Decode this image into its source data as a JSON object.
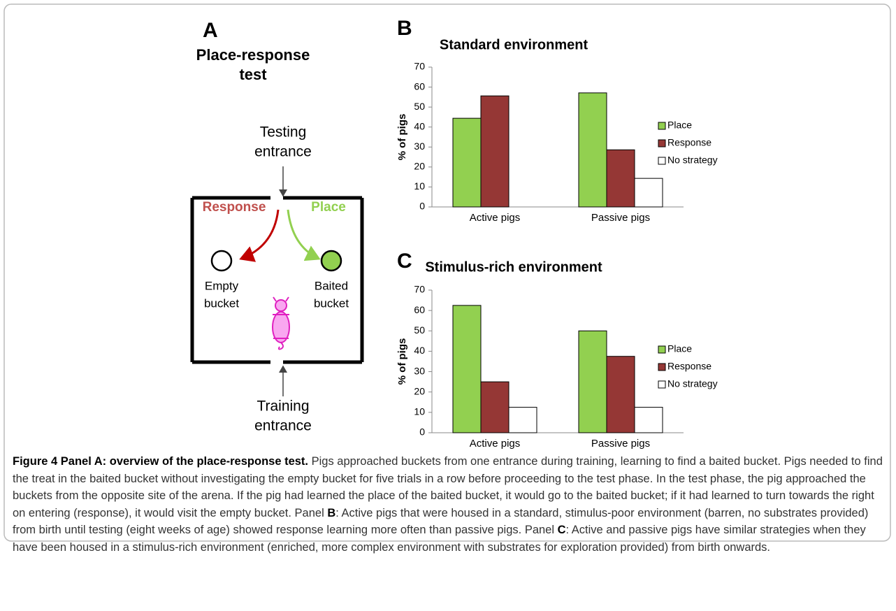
{
  "diagram": {
    "panel": "A",
    "title_lines": [
      "Place-response",
      "test"
    ],
    "testing_lines": [
      "Testing",
      "entrance"
    ],
    "training_lines": [
      "Training",
      "entrance"
    ],
    "response": "Response",
    "place": "Place",
    "empty_lines": [
      "Empty",
      "bucket"
    ],
    "baited_lines": [
      "Baited",
      "bucket"
    ]
  },
  "chart_data": [
    {
      "type": "bar",
      "panel": "B",
      "title": "Standard environment",
      "ylabel": "% of pigs",
      "categories": [
        "Active pigs",
        "Passive pigs"
      ],
      "series": [
        {
          "name": "Place",
          "color": "#92d050",
          "values": [
            44.4,
            57.1
          ]
        },
        {
          "name": "Response",
          "color": "#953735",
          "values": [
            55.6,
            28.6
          ]
        },
        {
          "name": "No strategy",
          "color": "#ffffff",
          "values": [
            0,
            14.3
          ]
        }
      ],
      "ylim": [
        0,
        70
      ],
      "yticks": [
        0,
        10,
        20,
        30,
        40,
        50,
        60,
        70
      ],
      "grid": false,
      "legend": "right"
    },
    {
      "type": "bar",
      "panel": "C",
      "title": "Stimulus-rich environment",
      "ylabel": "% of pigs",
      "categories": [
        "Active pigs",
        "Passive pigs"
      ],
      "series": [
        {
          "name": "Place",
          "color": "#92d050",
          "values": [
            62.5,
            50
          ]
        },
        {
          "name": "Response",
          "color": "#953735",
          "values": [
            25,
            37.5
          ]
        },
        {
          "name": "No strategy",
          "color": "#ffffff",
          "values": [
            12.5,
            12.5
          ]
        }
      ],
      "ylim": [
        0,
        70
      ],
      "yticks": [
        0,
        10,
        20,
        30,
        40,
        50,
        60,
        70
      ],
      "grid": false,
      "legend": "right"
    }
  ],
  "caption": [
    {
      "text": "Figure 4 Panel A: overview of the place-response test.",
      "bold": true
    },
    {
      "text": " Pigs approached buckets from one entrance during training, learning to find a baited bucket. Pigs needed to find the treat in the baited bucket without investigating the empty bucket for five trials in a row before proceeding to the test phase. In the test phase, the pig approached the buckets from the opposite site of the arena. If the pig had learned the place of the baited bucket, it would go to the baited bucket; if it had learned to turn towards the right on entering (response), it would visit the empty bucket. Panel "
    },
    {
      "text": "B",
      "bold": true
    },
    {
      "text": ": Active pigs that were housed in a standard, stimulus-poor environment (barren, no substrates provided) from birth until testing (eight weeks of age) showed response learning more often than passive pigs. Panel "
    },
    {
      "text": "C",
      "bold": true
    },
    {
      "text": ": Active and passive pigs have similar strategies when they have been housed in a stimulus-rich environment (enriched, more complex environment with substrates for exploration provided) from birth onwards."
    }
  ]
}
